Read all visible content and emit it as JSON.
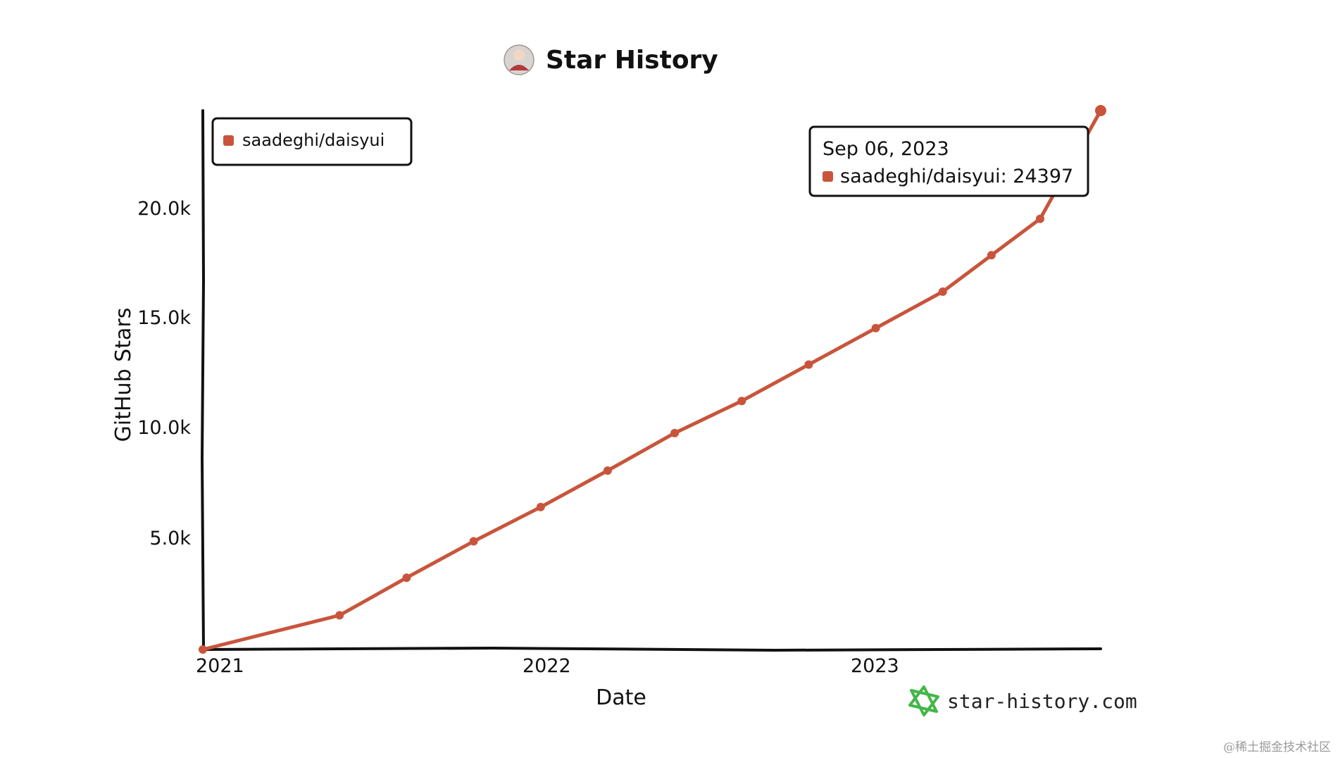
{
  "chart_data": {
    "type": "line",
    "title": "Star History",
    "xlabel": "Date",
    "ylabel": "GitHub Stars",
    "x_ticks": [
      "2021",
      "2022",
      "2023"
    ],
    "y_ticks": [
      "5.0k",
      "10.0k",
      "15.0k",
      "20.0k"
    ],
    "xlim": [
      "2021-01-01",
      "2023-09-06"
    ],
    "ylim": [
      0,
      24397
    ],
    "legend": {
      "position": "top-left",
      "entries": [
        "saadeghi/daisyui"
      ]
    },
    "series": [
      {
        "name": "saadeghi/daisyui",
        "color": "#c8553b",
        "points": [
          {
            "x": "2021-01-01",
            "y": 0
          },
          {
            "x": "2021-05-30",
            "y": 1550
          },
          {
            "x": "2021-08-11",
            "y": 3250
          },
          {
            "x": "2021-10-23",
            "y": 4900
          },
          {
            "x": "2022-01-04",
            "y": 6450
          },
          {
            "x": "2022-03-18",
            "y": 8100
          },
          {
            "x": "2022-05-30",
            "y": 9800
          },
          {
            "x": "2022-08-11",
            "y": 11250
          },
          {
            "x": "2022-10-23",
            "y": 12900
          },
          {
            "x": "2023-01-04",
            "y": 14550
          },
          {
            "x": "2023-03-18",
            "y": 16200
          },
          {
            "x": "2023-05-10",
            "y": 17850
          },
          {
            "x": "2023-07-02",
            "y": 19500
          },
          {
            "x": "2023-09-06",
            "y": 24397
          }
        ]
      }
    ],
    "tooltip": {
      "date": "Sep 06, 2023",
      "label": "saadeghi/daisyui: 24397"
    }
  },
  "brand": "star-history.com",
  "brand_color": "#43b649",
  "watermark": "@稀土掘金技术社区"
}
